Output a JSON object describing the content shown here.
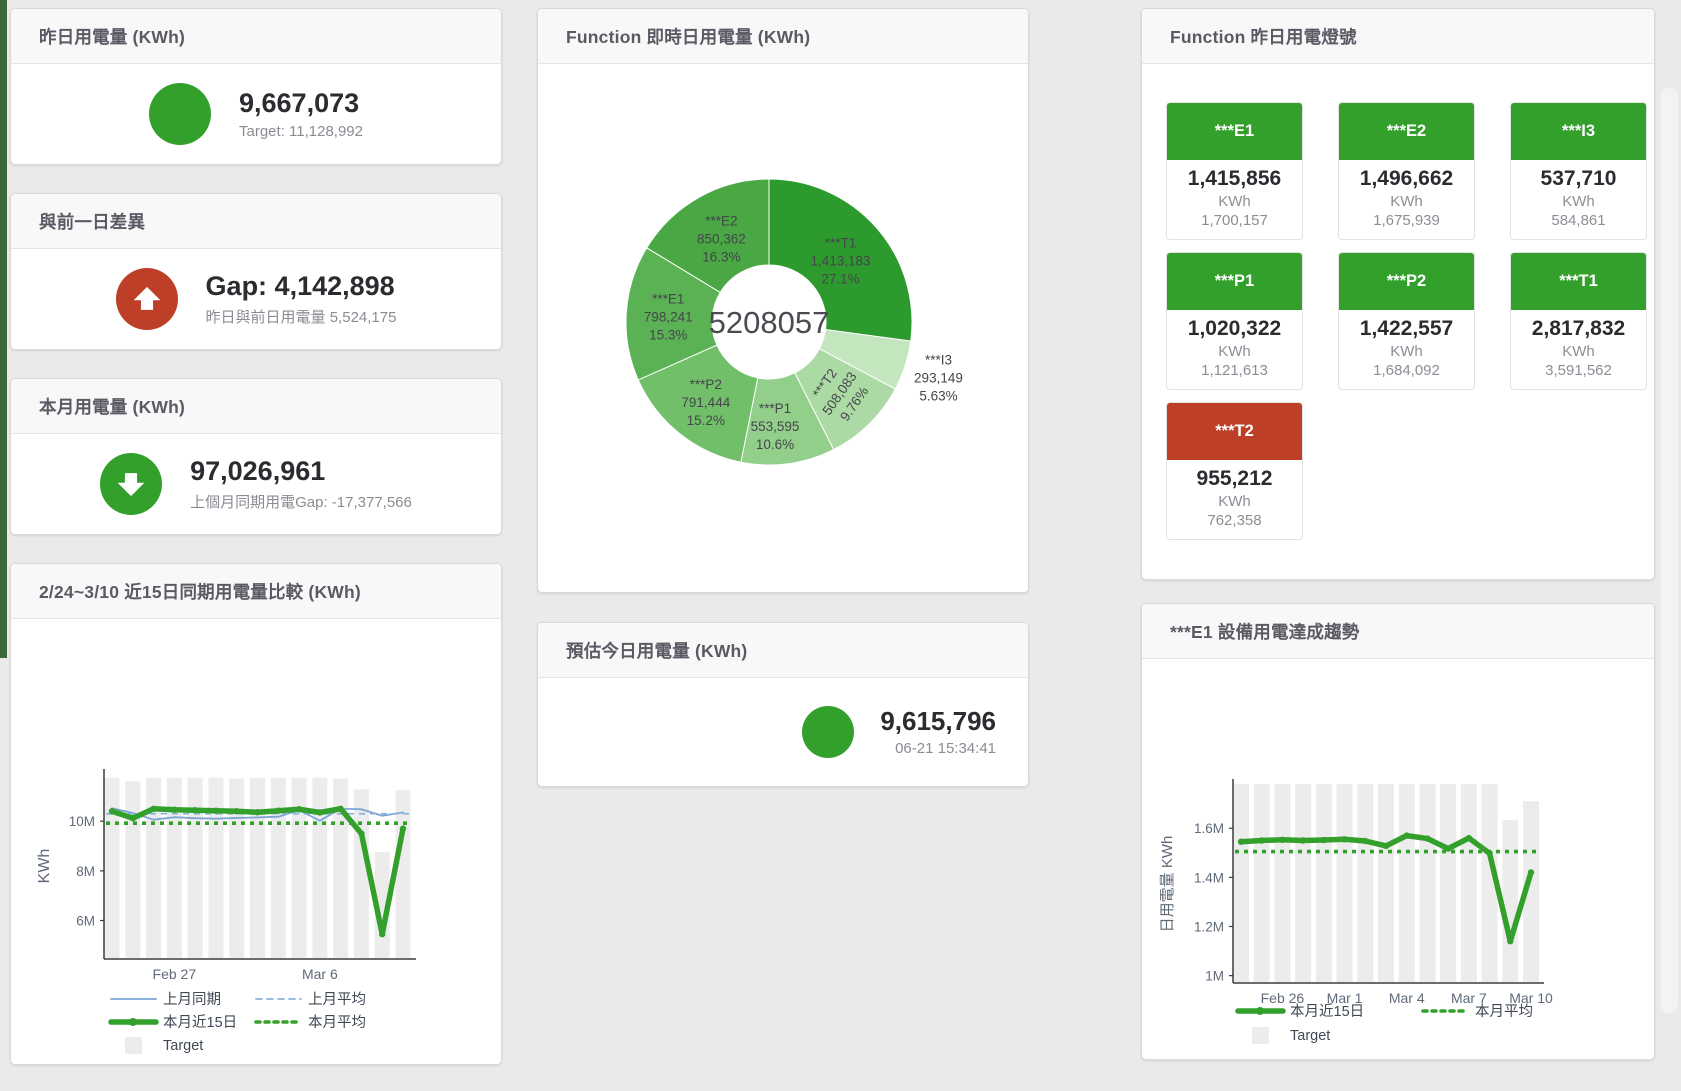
{
  "colors": {
    "green": "#34a02c",
    "red": "#bd3f28",
    "blue": "#7aa6d6",
    "bar_gray": "#ececec",
    "page_bg": "#eaeaea"
  },
  "stat_cards": [
    {
      "id": "yesterday",
      "title": "昨日用電量 (KWh)",
      "value": "9,667,073",
      "subtitle": "Target: 11,128,992",
      "icon": "circle",
      "icon_color": "#34a02c"
    },
    {
      "id": "day-gap",
      "title": "與前一日差異",
      "value": "Gap: 4,142,898",
      "subtitle": "昨日與前日用電量 5,524,175",
      "icon": "arrow-up",
      "icon_color": "#bd3f28"
    },
    {
      "id": "month",
      "title": "本月用電量 (KWh)",
      "value": "97,026,961",
      "subtitle": "上個月同期用電Gap: -17,377,566",
      "icon": "arrow-down",
      "icon_color": "#34a02c"
    },
    {
      "id": "estimate",
      "title": "預估今日用電量 (KWh)",
      "value": "9,615,796",
      "subtitle": "06-21 15:34:41",
      "icon": "circle",
      "icon_color": "#34a02c"
    }
  ],
  "lights_panel": {
    "title": "Function 昨日用電燈號",
    "unit_label": "KWh",
    "tiles": [
      {
        "name": "***E1",
        "value": "1,415,856",
        "target": "1,700,157",
        "status": "green"
      },
      {
        "name": "***E2",
        "value": "1,496,662",
        "target": "1,675,939",
        "status": "green"
      },
      {
        "name": "***I3",
        "value": "537,710",
        "target": "584,861",
        "status": "green"
      },
      {
        "name": "***P1",
        "value": "1,020,322",
        "target": "1,121,613",
        "status": "green"
      },
      {
        "name": "***P2",
        "value": "1,422,557",
        "target": "1,684,092",
        "status": "green"
      },
      {
        "name": "***T1",
        "value": "2,817,832",
        "target": "3,591,562",
        "status": "green"
      },
      {
        "name": "***T2",
        "value": "955,212",
        "target": "762,358",
        "status": "red"
      }
    ]
  },
  "chart_data": [
    {
      "id": "function-realtime-donut",
      "type": "pie",
      "title": "Function 即時日用電量 (KWh)",
      "center_total": "5208057",
      "unit": "KWh",
      "segments": [
        {
          "label": "***T1",
          "value": 1413183,
          "value_fmt": "1,413,183",
          "pct": 27.1,
          "pct_fmt": "27.1%",
          "color": "#2d9a2d"
        },
        {
          "label": "***I3",
          "value": 293149,
          "value_fmt": "293,149",
          "pct": 5.63,
          "pct_fmt": "5.63%",
          "color": "#c4e6bf"
        },
        {
          "label": "***T2",
          "value": 508083,
          "value_fmt": "508,083",
          "pct": 9.76,
          "pct_fmt": "9.76%",
          "color": "#abdaa4"
        },
        {
          "label": "***P1",
          "value": 553595,
          "value_fmt": "553,595",
          "pct": 10.6,
          "pct_fmt": "10.6%",
          "color": "#92cf8b"
        },
        {
          "label": "***P2",
          "value": 791444,
          "value_fmt": "791,444",
          "pct": 15.2,
          "pct_fmt": "15.2%",
          "color": "#71bf69"
        },
        {
          "label": "***E1",
          "value": 798241,
          "value_fmt": "798,241",
          "pct": 15.3,
          "pct_fmt": "15.3%",
          "color": "#5bb254"
        },
        {
          "label": "***E2",
          "value": 850362,
          "value_fmt": "850,362",
          "pct": 16.3,
          "pct_fmt": "16.3%",
          "color": "#49a843"
        }
      ]
    },
    {
      "id": "compare-15day",
      "type": "line+bar",
      "title": "2/24~3/10 近15日同期用電量比較 (KWh)",
      "ylabel": "KWh",
      "unit": "M KWh",
      "x_count": 15,
      "x_ticks": [
        {
          "index": 3,
          "label": "Feb 27"
        },
        {
          "index": 10,
          "label": "Mar 6"
        }
      ],
      "y_ticks": [
        {
          "v": 6,
          "label": "6M"
        },
        {
          "v": 8,
          "label": "8M"
        },
        {
          "v": 10,
          "label": "10M"
        }
      ],
      "ylim": [
        4.45,
        11.9
      ],
      "bars": {
        "name": "Target",
        "color": "#ececec",
        "values": [
          11.75,
          11.6,
          11.75,
          11.75,
          11.75,
          11.75,
          11.72,
          11.75,
          11.75,
          11.75,
          11.75,
          11.72,
          11.28,
          8.76,
          11.25
        ]
      },
      "series": [
        {
          "name": "上月同期",
          "style": "thin",
          "color": "#7aa6d6",
          "values": [
            10.52,
            10.33,
            10.06,
            10.16,
            10.12,
            10.1,
            10.13,
            10.15,
            10.18,
            10.44,
            10.02,
            10.5,
            10.48,
            10.22,
            10.35
          ]
        },
        {
          "name": "上月平均",
          "style": "dashed",
          "color": "#8bb3dd",
          "const": 10.3
        },
        {
          "name": "本月近15日",
          "style": "thick",
          "color": "#34a02c",
          "values": [
            10.4,
            10.12,
            10.5,
            10.46,
            10.44,
            10.42,
            10.4,
            10.36,
            10.42,
            10.48,
            10.35,
            10.5,
            9.5,
            5.45,
            9.7
          ]
        },
        {
          "name": "本月平均",
          "style": "dotted",
          "color": "#34a02c",
          "const": 9.92
        }
      ],
      "legend_rows": [
        [
          "上月同期",
          "上月平均"
        ],
        [
          "本月近15日",
          "本月平均"
        ],
        [
          "Target"
        ]
      ]
    },
    {
      "id": "e1-trend",
      "type": "line+bar",
      "title": "***E1 設備用電達成趨勢",
      "ylabel": "日用電量 KWh",
      "unit": "M KWh",
      "x_count": 15,
      "x_ticks": [
        {
          "index": 2,
          "label": "Feb 26"
        },
        {
          "index": 5,
          "label": "Mar 1"
        },
        {
          "index": 8,
          "label": "Mar 4"
        },
        {
          "index": 11,
          "label": "Mar 7"
        },
        {
          "index": 14,
          "label": "Mar 10"
        }
      ],
      "y_ticks": [
        {
          "v": 1,
          "label": "1M"
        },
        {
          "v": 1.2,
          "label": "1.2M"
        },
        {
          "v": 1.4,
          "label": "1.4M"
        },
        {
          "v": 1.6,
          "label": "1.6M"
        }
      ],
      "ylim": [
        0.97,
        1.78
      ],
      "bars": {
        "name": "Target",
        "color": "#ececec",
        "values": [
          1.78,
          1.78,
          1.78,
          1.78,
          1.78,
          1.78,
          1.78,
          1.78,
          1.78,
          1.78,
          1.78,
          1.78,
          1.78,
          1.633,
          1.71
        ]
      },
      "series": [
        {
          "name": "本月近15日",
          "style": "thick",
          "color": "#34a02c",
          "values": [
            1.545,
            1.55,
            1.553,
            1.55,
            1.552,
            1.555,
            1.548,
            1.528,
            1.57,
            1.558,
            1.517,
            1.56,
            1.498,
            1.14,
            1.42
          ]
        },
        {
          "name": "本月平均",
          "style": "dotted",
          "color": "#34a02c",
          "const": 1.505
        }
      ],
      "legend_rows": [
        [
          "本月近15日",
          "本月平均"
        ],
        [
          "Target"
        ]
      ]
    }
  ]
}
